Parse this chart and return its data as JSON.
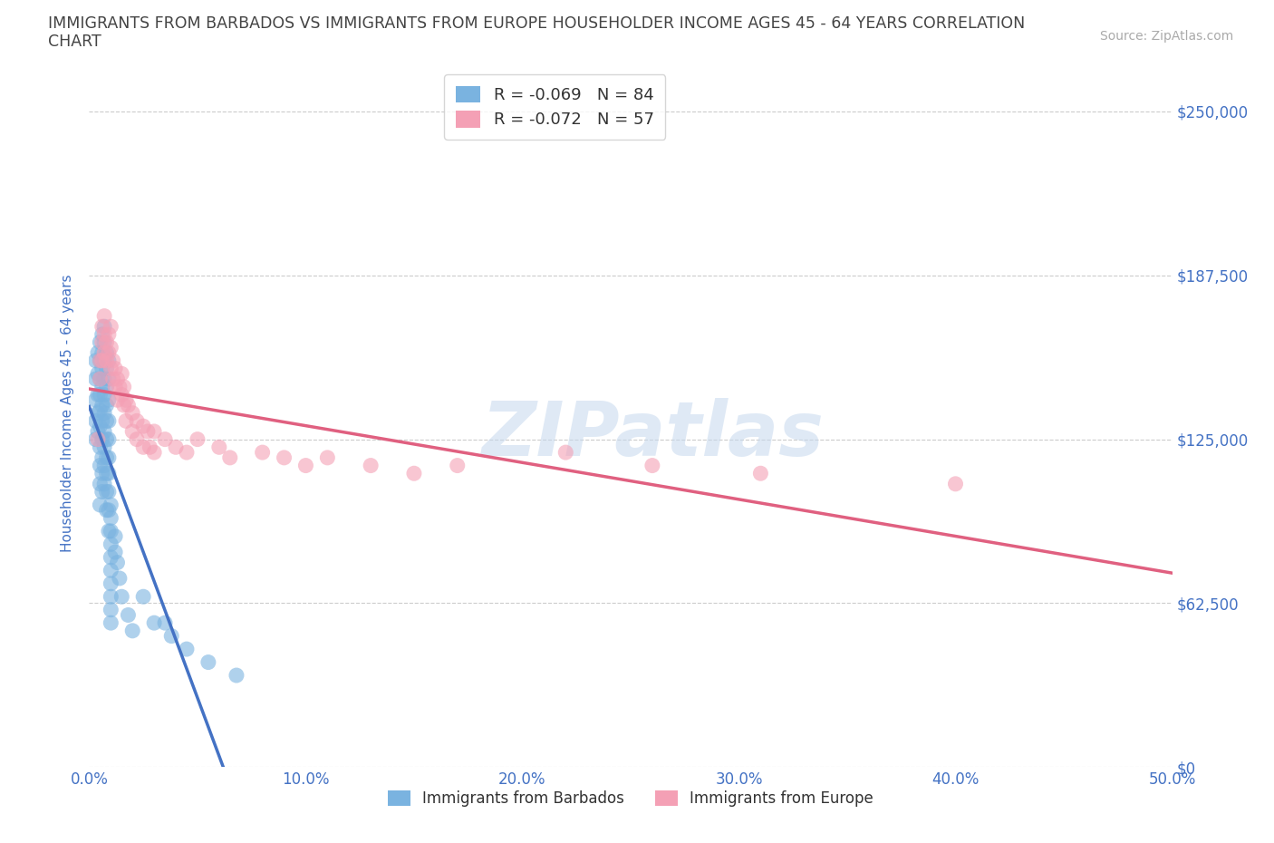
{
  "title_line1": "IMMIGRANTS FROM BARBADOS VS IMMIGRANTS FROM EUROPE HOUSEHOLDER INCOME AGES 45 - 64 YEARS CORRELATION",
  "title_line2": "CHART",
  "source": "Source: ZipAtlas.com",
  "ylabel": "Householder Income Ages 45 - 64 years",
  "ytick_labels": [
    "$0",
    "$62,500",
    "$125,000",
    "$187,500",
    "$250,000"
  ],
  "ytick_values": [
    0,
    62500,
    125000,
    187500,
    250000
  ],
  "xtick_labels": [
    "0.0%",
    "10.0%",
    "20.0%",
    "30.0%",
    "40.0%",
    "50.0%"
  ],
  "xtick_values": [
    0.0,
    0.1,
    0.2,
    0.3,
    0.4,
    0.5
  ],
  "xlim": [
    0.0,
    0.5
  ],
  "ylim": [
    0,
    270000
  ],
  "r_barbados": -0.069,
  "n_barbados": 84,
  "r_europe": -0.072,
  "n_europe": 57,
  "color_barbados": "#7ab3e0",
  "color_europe": "#f4a0b5",
  "color_text": "#4472c4",
  "color_title": "#444444",
  "color_pink_line": "#e06080",
  "color_blue_solid": "#4472c4",
  "color_blue_dash": "#90b8d8",
  "background_color": "#ffffff",
  "watermark_text": "ZIPatlas",
  "grid_color": "#cccccc",
  "barbados_x": [
    0.003,
    0.003,
    0.003,
    0.003,
    0.003,
    0.004,
    0.004,
    0.004,
    0.004,
    0.004,
    0.005,
    0.005,
    0.005,
    0.005,
    0.005,
    0.005,
    0.005,
    0.005,
    0.005,
    0.005,
    0.006,
    0.006,
    0.006,
    0.006,
    0.006,
    0.006,
    0.006,
    0.006,
    0.006,
    0.006,
    0.007,
    0.007,
    0.007,
    0.007,
    0.007,
    0.007,
    0.007,
    0.007,
    0.007,
    0.007,
    0.008,
    0.008,
    0.008,
    0.008,
    0.008,
    0.008,
    0.008,
    0.008,
    0.008,
    0.008,
    0.009,
    0.009,
    0.009,
    0.009,
    0.009,
    0.009,
    0.009,
    0.009,
    0.009,
    0.009,
    0.01,
    0.01,
    0.01,
    0.01,
    0.01,
    0.01,
    0.01,
    0.01,
    0.01,
    0.01,
    0.012,
    0.012,
    0.013,
    0.014,
    0.015,
    0.018,
    0.02,
    0.025,
    0.03,
    0.035,
    0.038,
    0.045,
    0.055,
    0.068
  ],
  "barbados_y": [
    155000,
    148000,
    140000,
    132000,
    125000,
    158000,
    150000,
    142000,
    135000,
    128000,
    162000,
    155000,
    148000,
    142000,
    136000,
    130000,
    122000,
    115000,
    108000,
    100000,
    165000,
    158000,
    152000,
    145000,
    138000,
    132000,
    125000,
    118000,
    112000,
    105000,
    168000,
    162000,
    155000,
    148000,
    142000,
    135000,
    128000,
    122000,
    115000,
    108000,
    158000,
    152000,
    145000,
    138000,
    132000,
    125000,
    118000,
    112000,
    105000,
    98000,
    155000,
    148000,
    140000,
    132000,
    125000,
    118000,
    112000,
    105000,
    98000,
    90000,
    100000,
    95000,
    90000,
    85000,
    80000,
    75000,
    70000,
    65000,
    60000,
    55000,
    88000,
    82000,
    78000,
    72000,
    65000,
    58000,
    52000,
    65000,
    55000,
    55000,
    50000,
    45000,
    40000,
    35000
  ],
  "europe_x": [
    0.004,
    0.005,
    0.005,
    0.006,
    0.006,
    0.006,
    0.007,
    0.007,
    0.007,
    0.008,
    0.008,
    0.009,
    0.009,
    0.01,
    0.01,
    0.01,
    0.011,
    0.011,
    0.012,
    0.012,
    0.013,
    0.013,
    0.014,
    0.015,
    0.015,
    0.016,
    0.016,
    0.017,
    0.017,
    0.018,
    0.02,
    0.02,
    0.022,
    0.022,
    0.025,
    0.025,
    0.027,
    0.028,
    0.03,
    0.03,
    0.035,
    0.04,
    0.045,
    0.05,
    0.06,
    0.065,
    0.08,
    0.09,
    0.1,
    0.11,
    0.13,
    0.15,
    0.17,
    0.22,
    0.26,
    0.31,
    0.4
  ],
  "europe_y": [
    125000,
    155000,
    148000,
    168000,
    162000,
    155000,
    172000,
    165000,
    158000,
    162000,
    155000,
    165000,
    158000,
    168000,
    160000,
    152000,
    155000,
    148000,
    152000,
    145000,
    148000,
    140000,
    145000,
    150000,
    142000,
    145000,
    138000,
    140000,
    132000,
    138000,
    135000,
    128000,
    132000,
    125000,
    130000,
    122000,
    128000,
    122000,
    128000,
    120000,
    125000,
    122000,
    120000,
    125000,
    122000,
    118000,
    120000,
    118000,
    115000,
    118000,
    115000,
    112000,
    115000,
    120000,
    115000,
    112000,
    108000
  ],
  "legend_facecolor": "#ffffff",
  "legend_edgecolor": "#cccccc"
}
